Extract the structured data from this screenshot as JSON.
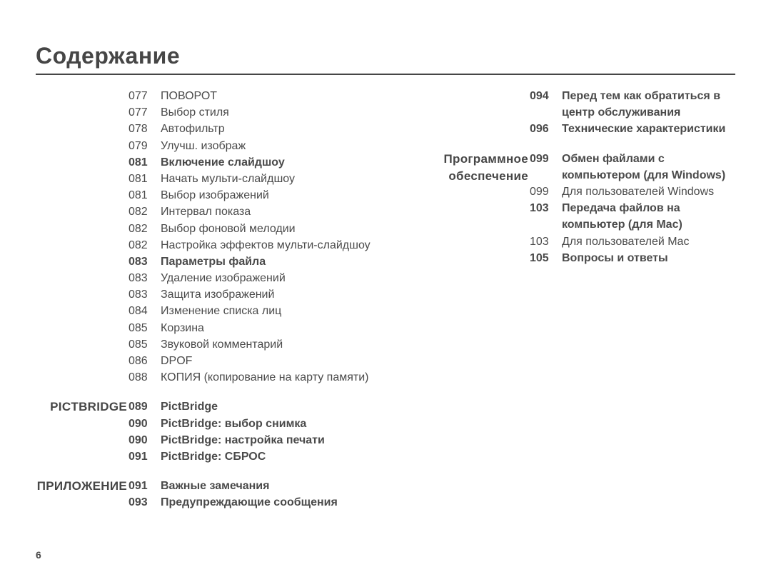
{
  "title": "Содержание",
  "page_number": "6",
  "colors": {
    "text": "#4a4a4a",
    "heading": "#464646",
    "rule": "#464646",
    "background": "#ffffff"
  },
  "typography": {
    "title_fontsize": 32,
    "body_fontsize": 16,
    "section_fontsize": 17,
    "title_weight": 700,
    "bold_weight": 700
  },
  "left": [
    {
      "page": "077",
      "label": "ПОВОРОТ",
      "bold": false,
      "section": ""
    },
    {
      "page": "077",
      "label": "Выбор стиля",
      "bold": false,
      "section": ""
    },
    {
      "page": "078",
      "label": "Автофильтр",
      "bold": false,
      "section": ""
    },
    {
      "page": "079",
      "label": "Улучш. изображ",
      "bold": false,
      "section": ""
    },
    {
      "page": "081",
      "label": "Включение слайдшоу",
      "bold": true,
      "section": ""
    },
    {
      "page": "081",
      "label": "Начать мульти-слайдшоу",
      "bold": false,
      "section": ""
    },
    {
      "page": "081",
      "label": "Выбор изображений",
      "bold": false,
      "section": ""
    },
    {
      "page": "082",
      "label": "Интервал показа",
      "bold": false,
      "section": ""
    },
    {
      "page": "082",
      "label": "Выбор фоновой мелодии",
      "bold": false,
      "section": ""
    },
    {
      "page": "082",
      "label": "Настройка эффектов мульти-слайдшоу",
      "bold": false,
      "section": ""
    },
    {
      "page": "083",
      "label": "Параметры файла",
      "bold": true,
      "section": ""
    },
    {
      "page": "083",
      "label": "Удаление изображений",
      "bold": false,
      "section": ""
    },
    {
      "page": "083",
      "label": "Защита изображений",
      "bold": false,
      "section": ""
    },
    {
      "page": "084",
      "label": "Изменение списка лиц",
      "bold": false,
      "section": ""
    },
    {
      "page": "085",
      "label": "Корзина",
      "bold": false,
      "section": ""
    },
    {
      "page": "085",
      "label": "Звуковой комментарий",
      "bold": false,
      "section": ""
    },
    {
      "page": "086",
      "label": "DPOF",
      "bold": false,
      "section": ""
    },
    {
      "page": "088",
      "label": "КОПИЯ (копирование на карту памяти)",
      "bold": false,
      "section": ""
    },
    {
      "page": "089",
      "label": "PictBridge",
      "bold": true,
      "section": "PICTBRIDGE",
      "gap_before": 18
    },
    {
      "page": "090",
      "label": "PictBridge: выбор снимка",
      "bold": true,
      "section": ""
    },
    {
      "page": "090",
      "label": "PictBridge: настройка печати",
      "bold": true,
      "section": ""
    },
    {
      "page": "091",
      "label": "PictBridge: СБРОС",
      "bold": true,
      "section": ""
    },
    {
      "page": "091",
      "label": "Важные замечания",
      "bold": true,
      "section": "ПРИЛОЖЕНИЕ",
      "gap_before": 18
    },
    {
      "page": "093",
      "label": "Предупреждающие сообщения",
      "bold": true,
      "section": ""
    }
  ],
  "right": [
    {
      "page": "094",
      "label": "Перед тем как обратиться в центр обслуживания",
      "bold": true,
      "section": ""
    },
    {
      "page": "096",
      "label": "Технические характеристики",
      "bold": true,
      "section": ""
    },
    {
      "page": "099",
      "label": "Обмен файлами с компьютером (для Windows)",
      "bold": true,
      "section": "Программное обеспечение",
      "gap_before": 18
    },
    {
      "page": "099",
      "label": "Для пользователей Windows",
      "bold": false,
      "section": ""
    },
    {
      "page": "103",
      "label": "Передача файлов на компьютер (для Mac)",
      "bold": true,
      "section": ""
    },
    {
      "page": "103",
      "label": "Для пользователей Mac",
      "bold": false,
      "section": ""
    },
    {
      "page": "105",
      "label": "Вопросы и ответы",
      "bold": true,
      "section": ""
    }
  ]
}
